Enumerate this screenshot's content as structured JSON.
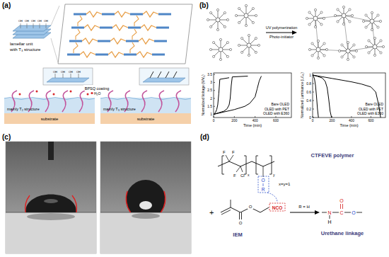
{
  "figure": {
    "panel_a": {
      "label": "(a)",
      "unit_label": [
        "lamellar unit",
        "with T₃ structure"
      ],
      "hydroxyl": "OH",
      "coating": "BPSQ coating",
      "water": "H₂O",
      "substrate": "substrate",
      "left_structure": "mainly T₂ structure",
      "right_structure": "mainly T₃ structure"
    },
    "panel_b": {
      "label": "(b)",
      "reaction": "UV polymerization",
      "initiator": "Photo-initiator"
    },
    "panel_c": {
      "label": "(c)"
    },
    "panel_d": {
      "label": "(d)",
      "polymer": "CTFEVE polymer",
      "monomer": "IEM",
      "condition": "R = H",
      "product": "Urethane linkage",
      "ratio": "x=y=1",
      "plus": "+",
      "atoms": {
        "F": "F",
        "Cl": "Cl",
        "O": "O",
        "R": "R",
        "N": "N",
        "C": "C",
        "H": "H",
        "NCO": "NCO",
        "x": "x",
        "y": "y"
      }
    }
  },
  "chart_data": [
    {
      "type": "line",
      "y_label": "Normalized Voltage (V/V₀)",
      "x_label": "Time (min)",
      "xlim": [
        0,
        750
      ],
      "xticks": [
        0,
        200,
        400,
        600
      ],
      "ylim": [
        0.8,
        3.6
      ],
      "yticks": [
        1,
        1.5,
        2,
        2.5,
        3,
        3.5
      ],
      "legend": "lower right",
      "series": [
        {
          "name": "Bare OLED",
          "color": "#000000",
          "x": [
            0,
            10,
            20,
            30,
            40,
            50,
            60,
            150
          ],
          "values": [
            1,
            1.05,
            1.15,
            1.3,
            1.6,
            2.3,
            3.2,
            3.3
          ]
        },
        {
          "name": "OLED with PET",
          "color": "#000000",
          "x": [
            0,
            50,
            100,
            130,
            150,
            160,
            170,
            180,
            330
          ],
          "values": [
            1,
            1.1,
            1.2,
            1.35,
            1.6,
            2.0,
            2.8,
            3.35,
            3.4
          ]
        },
        {
          "name": "OLED with E360",
          "color": "#000000",
          "x": [
            0,
            100,
            200,
            300,
            350,
            400,
            420,
            440,
            460
          ],
          "values": [
            1,
            1.15,
            1.3,
            1.5,
            1.7,
            2.1,
            2.6,
            3.1,
            3.4
          ]
        }
      ]
    },
    {
      "type": "line",
      "y_label": "Normalized Luminance (L/L₀)",
      "x_label": "Time (min)",
      "xlim": [
        0,
        750
      ],
      "xticks": [
        0,
        200,
        400,
        600
      ],
      "ylim": [
        0,
        1.05
      ],
      "yticks": [
        0,
        0.2,
        0.4,
        0.6,
        0.8,
        1
      ],
      "legend": "lower right",
      "series": [
        {
          "name": "Bare OLED",
          "color": "#000000",
          "x": [
            0,
            10,
            20,
            30,
            40,
            50,
            60
          ],
          "values": [
            1,
            0.97,
            0.9,
            0.75,
            0.5,
            0.2,
            0
          ]
        },
        {
          "name": "OLED with PET",
          "color": "#000000",
          "x": [
            0,
            50,
            100,
            130,
            150,
            165,
            180,
            195
          ],
          "values": [
            1,
            0.97,
            0.93,
            0.85,
            0.7,
            0.45,
            0.15,
            0
          ]
        },
        {
          "name": "OLED with E360",
          "color": "#000000",
          "x": [
            0,
            100,
            200,
            300,
            400,
            500,
            600,
            650,
            680,
            700
          ],
          "values": [
            1,
            0.96,
            0.92,
            0.88,
            0.84,
            0.79,
            0.72,
            0.6,
            0.3,
            0
          ]
        }
      ]
    }
  ]
}
